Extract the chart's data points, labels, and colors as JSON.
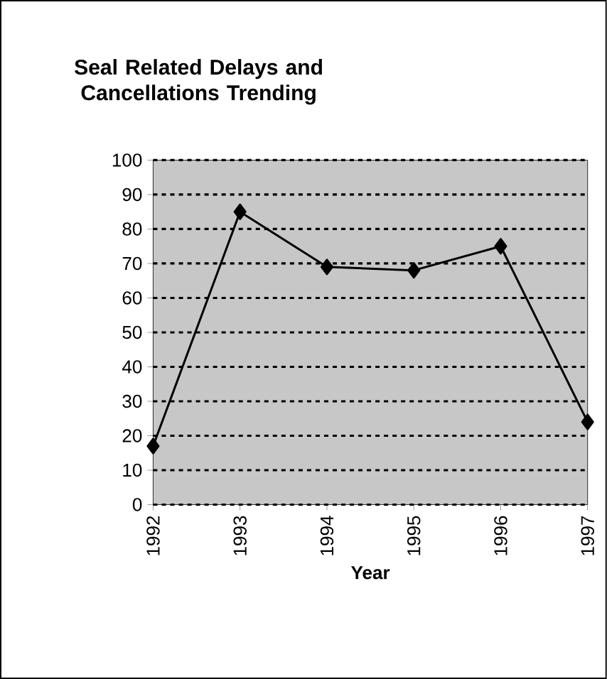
{
  "chart_data": {
    "type": "line",
    "title": "Seal Related Delays and Cancellations Trending",
    "xlabel": "Year",
    "categories": [
      "1992",
      "1993",
      "1994",
      "1995",
      "1996",
      "1997"
    ],
    "series": [
      {
        "color": "#000000",
        "values": [
          17,
          85,
          69,
          68,
          75,
          24
        ]
      }
    ],
    "ylim": [
      0,
      100
    ],
    "yticks": [
      0,
      10,
      20,
      30,
      40,
      50,
      60,
      70,
      80,
      90,
      100
    ],
    "grid": "y",
    "marker": "diamond",
    "line_style": "solid"
  }
}
